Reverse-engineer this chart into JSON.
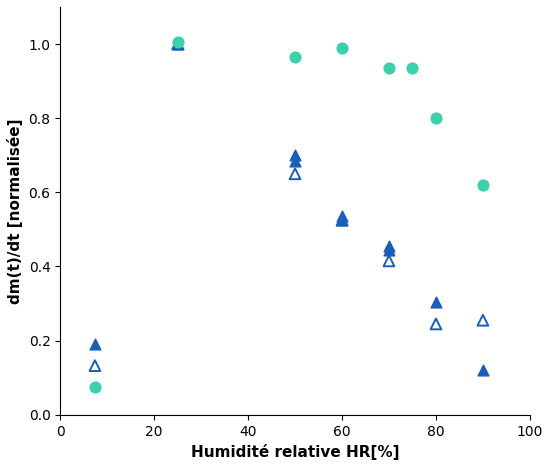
{
  "xlabel": "Humidité relative HR[%]",
  "ylabel": "dm(t)/dt [normalisée]",
  "xlim": [
    0,
    100
  ],
  "ylim": [
    0.0,
    1.1
  ],
  "yticks": [
    0.0,
    0.2,
    0.4,
    0.6,
    0.8,
    1.0
  ],
  "xticks": [
    0,
    20,
    40,
    60,
    80,
    100
  ],
  "h2o_x": [
    25,
    50,
    50,
    60,
    60,
    70,
    70,
    80,
    90
  ],
  "h2o_y": [
    1.0,
    0.7,
    0.685,
    0.535,
    0.525,
    0.455,
    0.445,
    0.305,
    0.12
  ],
  "nacl_x": [
    25,
    50,
    60,
    70,
    80,
    90
  ],
  "nacl_y": [
    1.0,
    0.65,
    0.525,
    0.415,
    0.245,
    0.255
  ],
  "pva_x": [
    25,
    50,
    60,
    70,
    75,
    80,
    90
  ],
  "pva_y": [
    1.005,
    0.965,
    0.99,
    0.935,
    0.935,
    0.8,
    0.62
  ],
  "h2o_color": "#1a5eb8",
  "pva_color": "#3ecfad",
  "fontsize_label": 11,
  "fontsize_tick": 10,
  "marker_size": 60
}
